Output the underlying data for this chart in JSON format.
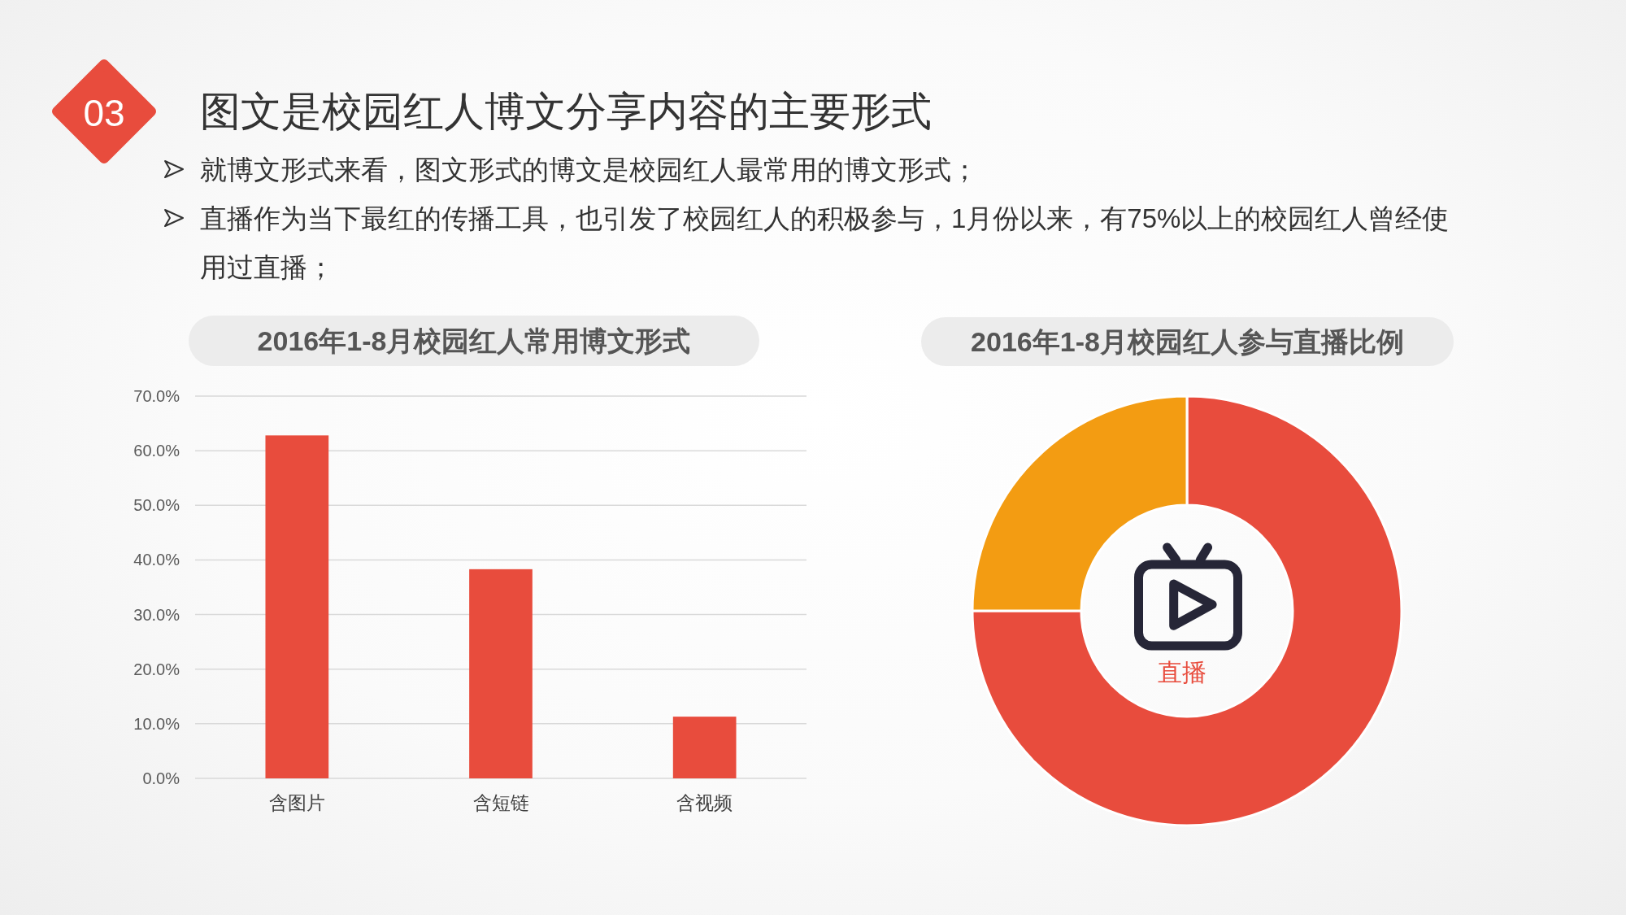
{
  "chart_data": [
    {
      "type": "other",
      "title": "图文是校园红人博文分享内容的主要形式",
      "annotations": [
        "03",
        "就博文形式来看，图文形式的博文是校园红人最常用的博文形式；",
        "直播作为当下最红的传播工具，也引发了校园红人的积极参与，1月份以来，有75%以上的校园红人曾经使用过直播；"
      ]
    },
    {
      "type": "bar",
      "title": "2016年1-8月校园红人常用博文形式",
      "categories": [
        "含图片",
        "含短链",
        "含视频"
      ],
      "values": [
        62.8,
        38.3,
        11.3
      ],
      "color": "#e84c3d",
      "ylim": [
        0,
        70
      ],
      "yticks": [
        {
          "value": 0,
          "label": "0.0%"
        },
        {
          "value": 10,
          "label": "10.0%"
        },
        {
          "value": 20,
          "label": "20.0%"
        },
        {
          "value": 30,
          "label": "30.0%"
        },
        {
          "value": 40,
          "label": "40.0%"
        },
        {
          "value": 50,
          "label": "50.0%"
        },
        {
          "value": 60,
          "label": "60.0%"
        },
        {
          "value": 70,
          "label": "70.0%"
        }
      ],
      "grid": "y"
    },
    {
      "type": "donut",
      "title": "2016年1-8月校园红人参与直播比例",
      "categories": [
        null,
        null
      ],
      "values": [
        75,
        25
      ],
      "colors": [
        "#e84c3d",
        "#f39c12"
      ],
      "annotations": [
        "直播"
      ]
    }
  ]
}
